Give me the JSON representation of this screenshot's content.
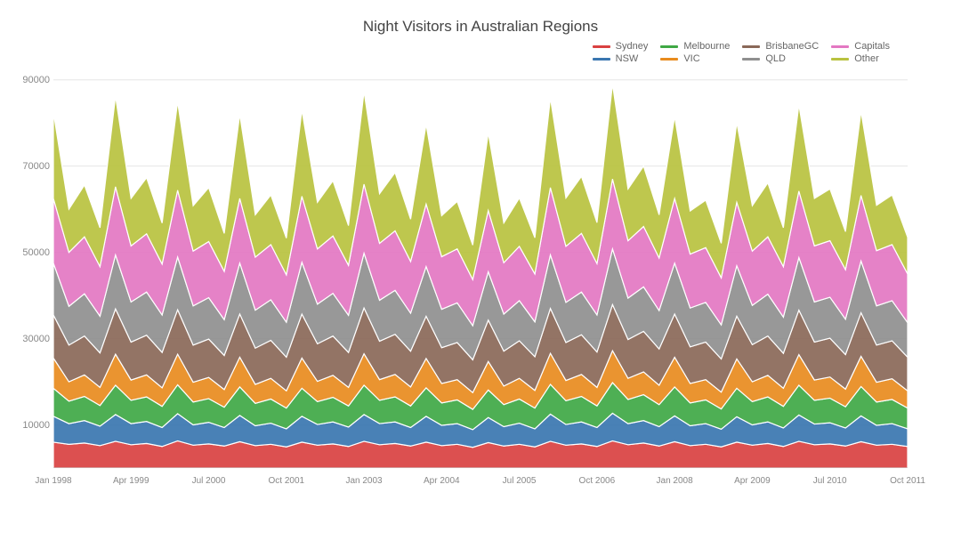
{
  "chart": {
    "type": "stacked-area",
    "title": "Night Visitors in Australian Regions",
    "title_fontsize": 17,
    "title_color": "#444444",
    "background_color": "#ffffff",
    "plot_background": "#ffffff",
    "grid_color": "#e6e6e6",
    "axis_label_color": "#888888",
    "axis_fontsize": 11,
    "series_outline_color": "#ffffff",
    "series_outline_width": 1.2,
    "ylim": [
      0,
      92000
    ],
    "yticks": [
      10000,
      30000,
      50000,
      70000,
      90000
    ],
    "ytick_labels": [
      "10000",
      "30000",
      "50000",
      "70000",
      "90000"
    ],
    "x_labels": [
      "Jan 1998",
      "Apr 1999",
      "Jul 2000",
      "Oct 2001",
      "Jan 2003",
      "Apr 2004",
      "Jul 2005",
      "Oct 2006",
      "Jan 2008",
      "Apr 2009",
      "Jul 2010",
      "Oct 2011"
    ],
    "x_positions": [
      0.0,
      0.0909,
      0.1818,
      0.2727,
      0.3636,
      0.4545,
      0.5454,
      0.6363,
      0.7272,
      0.8181,
      0.909,
      1.0
    ],
    "legend": {
      "position": "top-right",
      "columns": [
        [
          {
            "label": "Sydney",
            "color": "#d94141"
          },
          {
            "label": "NSW",
            "color": "#3a76b0"
          }
        ],
        [
          {
            "label": "Melbourne",
            "color": "#3fa845"
          },
          {
            "label": "VIC",
            "color": "#e88b1e"
          }
        ],
        [
          {
            "label": "BrisbaneGC",
            "color": "#8a6858"
          },
          {
            "label": "QLD",
            "color": "#8f8f8f"
          }
        ],
        [
          {
            "label": "Capitals",
            "color": "#e377c2"
          },
          {
            "label": "Other",
            "color": "#b9c23f"
          }
        ]
      ]
    },
    "n_points": 56,
    "series": [
      {
        "name": "Sydney",
        "color": "#d94141",
        "values": [
          6000,
          5500,
          5800,
          5200,
          6200,
          5400,
          5700,
          5000,
          6300,
          5300,
          5600,
          5100,
          6100,
          5200,
          5500,
          4900,
          6000,
          5300,
          5600,
          5000,
          6200,
          5400,
          5700,
          5100,
          6000,
          5200,
          5500,
          4800,
          5900,
          5100,
          5500,
          4900,
          6200,
          5300,
          5600,
          5000,
          6300,
          5400,
          5800,
          5100,
          6100,
          5200,
          5500,
          4900,
          6000,
          5300,
          5700,
          5000,
          6200,
          5400,
          5600,
          5100,
          6100,
          5300,
          5500,
          5000
        ]
      },
      {
        "name": "NSW",
        "color": "#3a76b0",
        "values": [
          6000,
          4800,
          5200,
          4500,
          6200,
          4900,
          5100,
          4400,
          6300,
          4700,
          5000,
          4300,
          6100,
          4600,
          4900,
          4200,
          6000,
          4800,
          5100,
          4500,
          6200,
          4900,
          5000,
          4300,
          6000,
          4700,
          4800,
          4100,
          5800,
          4500,
          4900,
          4200,
          6300,
          4800,
          5100,
          4400,
          6400,
          4900,
          5200,
          4500,
          6000,
          4600,
          4800,
          4100,
          5900,
          4700,
          5000,
          4300,
          6100,
          4800,
          4900,
          4200,
          6000,
          4600,
          4800,
          4100
        ]
      },
      {
        "name": "Melbourne",
        "color": "#3fa845",
        "values": [
          6500,
          5200,
          5600,
          4800,
          6800,
          5400,
          5700,
          4900,
          6700,
          5300,
          5500,
          4700,
          6600,
          5200,
          5600,
          4800,
          6500,
          5300,
          5700,
          4900,
          6800,
          5400,
          5800,
          5000,
          6600,
          5200,
          5500,
          4700,
          6400,
          5100,
          5600,
          4800,
          6900,
          5500,
          5900,
          5000,
          7100,
          5600,
          6000,
          5100,
          6700,
          5300,
          5500,
          4700,
          6600,
          5400,
          5800,
          5000,
          6900,
          5500,
          5700,
          4900,
          6800,
          5400,
          5600,
          4800
        ]
      },
      {
        "name": "VIC",
        "color": "#e88b1e",
        "values": [
          7000,
          4500,
          5000,
          4200,
          7200,
          4700,
          5100,
          4300,
          7100,
          4600,
          4900,
          4100,
          6900,
          4400,
          4800,
          4000,
          7000,
          4700,
          5100,
          4300,
          7300,
          4800,
          5200,
          4400,
          6800,
          4500,
          4700,
          3900,
          6600,
          4300,
          4800,
          4100,
          7200,
          4700,
          5100,
          4300,
          7400,
          4900,
          5300,
          4500,
          6900,
          4500,
          4700,
          3900,
          6800,
          4600,
          5000,
          4200,
          7100,
          4700,
          4900,
          4100,
          7000,
          4600,
          4800,
          4000
        ]
      },
      {
        "name": "BrisbaneGC",
        "color": "#8a6858",
        "values": [
          10000,
          8500,
          9000,
          8000,
          10500,
          8800,
          9200,
          8200,
          10300,
          8600,
          8900,
          7900,
          10000,
          8400,
          8800,
          7800,
          10200,
          8700,
          9100,
          8100,
          10600,
          8900,
          9300,
          8300,
          9800,
          8300,
          8600,
          7600,
          9600,
          8100,
          8700,
          7800,
          10400,
          8800,
          9200,
          8200,
          10700,
          9000,
          9400,
          8400,
          10000,
          8500,
          8700,
          7700,
          9900,
          8600,
          9100,
          8100,
          10300,
          8800,
          9000,
          8000,
          10100,
          8600,
          8800,
          7800
        ]
      },
      {
        "name": "QLD",
        "color": "#8f8f8f",
        "values": [
          12000,
          9000,
          9800,
          8500,
          12500,
          9300,
          10000,
          8700,
          12200,
          9100,
          9600,
          8300,
          11800,
          8800,
          9400,
          8100,
          12000,
          9200,
          9900,
          8600,
          12700,
          9500,
          10200,
          8800,
          11500,
          8900,
          9200,
          7900,
          11200,
          8600,
          9300,
          8100,
          12400,
          9300,
          9900,
          8600,
          12900,
          9600,
          10300,
          8900,
          11800,
          9000,
          9200,
          7900,
          11700,
          9100,
          9700,
          8400,
          12200,
          9300,
          9500,
          8200,
          12000,
          9100,
          9300,
          8000
        ]
      },
      {
        "name": "Capitals",
        "color": "#e377c2",
        "values": [
          15000,
          12500,
          13200,
          11500,
          15800,
          13000,
          13500,
          11800,
          15500,
          12700,
          13000,
          11200,
          15000,
          12300,
          12800,
          11000,
          15300,
          12800,
          13300,
          11600,
          16000,
          13200,
          13800,
          12000,
          14500,
          12200,
          12500,
          10700,
          14200,
          11900,
          12600,
          11100,
          15600,
          13000,
          13600,
          11900,
          16200,
          13300,
          14000,
          12200,
          15000,
          12500,
          12700,
          10900,
          14700,
          12600,
          13300,
          11700,
          15400,
          13000,
          13100,
          11500,
          15200,
          12800,
          13000,
          11300
        ]
      },
      {
        "name": "Other",
        "color": "#b9c23f",
        "values": [
          20000,
          10000,
          12000,
          9000,
          21000,
          11000,
          13000,
          9500,
          20500,
          10500,
          12500,
          8800,
          19500,
          9800,
          11500,
          8500,
          20000,
          10800,
          12800,
          9200,
          21500,
          11500,
          13500,
          9800,
          18500,
          9500,
          11000,
          8000,
          18000,
          9200,
          11200,
          8400,
          20800,
          11200,
          13200,
          9500,
          22000,
          12000,
          14000,
          10000,
          19000,
          10000,
          11000,
          8000,
          18500,
          10500,
          12500,
          9000,
          20000,
          11000,
          12000,
          8800,
          19500,
          10500,
          11500,
          8500
        ]
      }
    ]
  }
}
